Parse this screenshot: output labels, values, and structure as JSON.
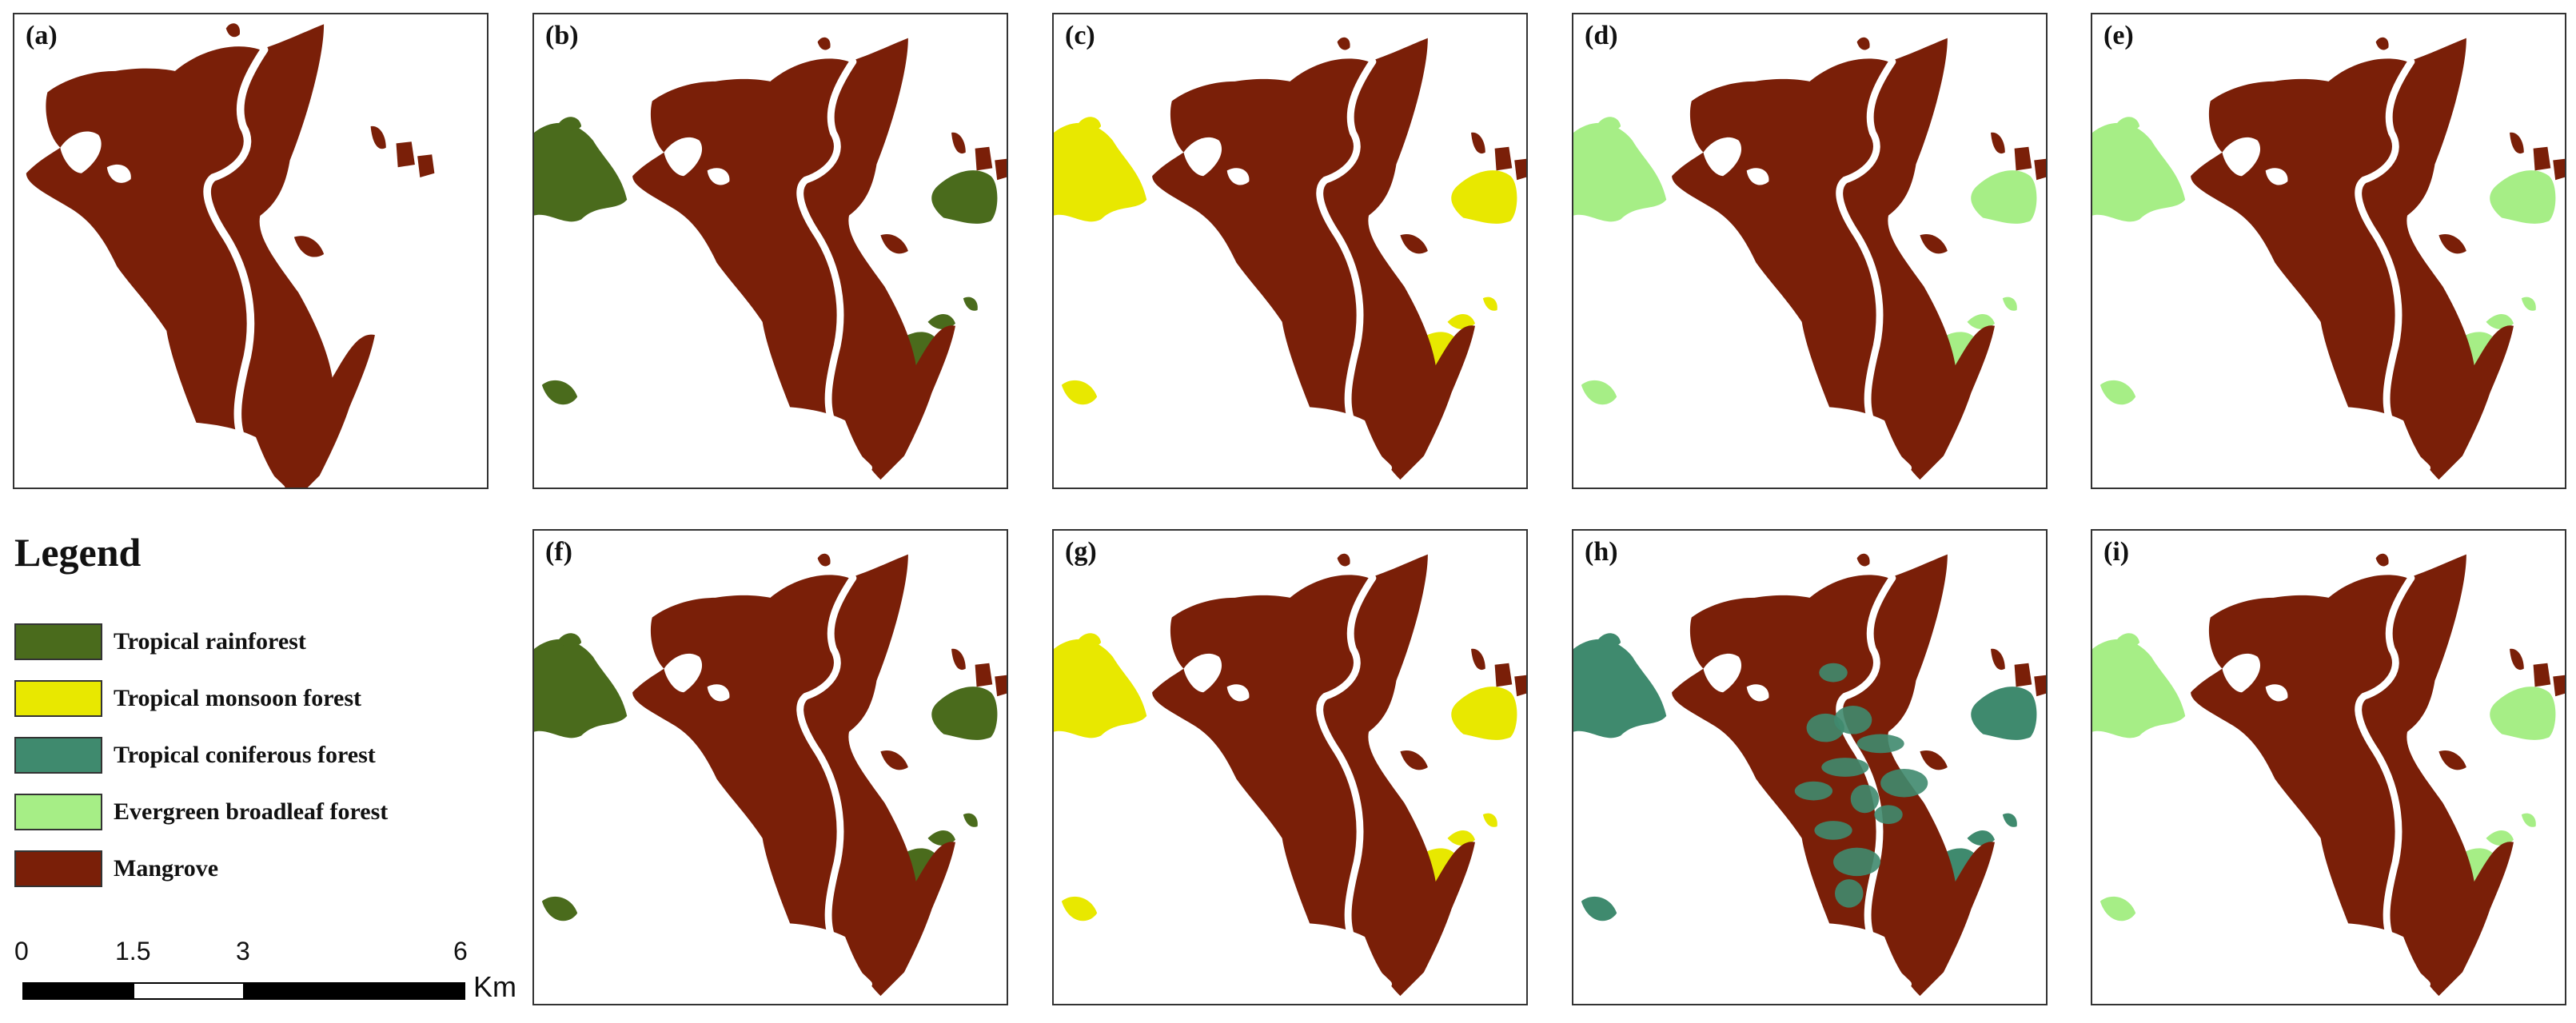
{
  "panels": [
    {
      "label": "(a)",
      "overlay": "none"
    },
    {
      "label": "(b)",
      "overlay": "rainforest"
    },
    {
      "label": "(c)",
      "overlay": "monsoon"
    },
    {
      "label": "(d)",
      "overlay": "broadleaf"
    },
    {
      "label": "(e)",
      "overlay": "broadleaf"
    },
    {
      "label": "(f)",
      "overlay": "rainforest"
    },
    {
      "label": "(g)",
      "overlay": "monsoon"
    },
    {
      "label": "(h)",
      "overlay": "coniferous"
    },
    {
      "label": "(i)",
      "overlay": "broadleaf"
    }
  ],
  "legend": {
    "title": "Legend",
    "items": [
      {
        "label": "Tropical rainforest",
        "color": "#4a6b1c"
      },
      {
        "label": "Tropical monsoon forest",
        "color": "#e8e800"
      },
      {
        "label": "Tropical coniferous forest",
        "color": "#3f8a6e"
      },
      {
        "label": "Evergreen broadleaf forest",
        "color": "#a6ee86"
      },
      {
        "label": "Mangrove",
        "color": "#7a1f08"
      }
    ]
  },
  "scale_bar": {
    "labels": [
      "0",
      "1.5",
      "3",
      "6"
    ],
    "unit": "Km"
  }
}
